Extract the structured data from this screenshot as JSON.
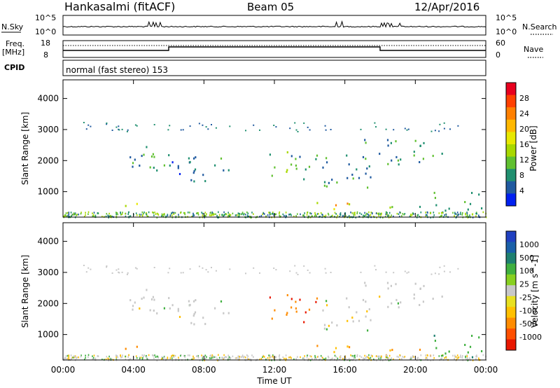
{
  "header": {
    "station": "Hankasalmi (fitACF)",
    "beam": "Beam 05",
    "date": "12/Apr/2016"
  },
  "panels": {
    "nsky_label": "N.Sky",
    "nsky_ticks": [
      "10^5",
      "10^0"
    ],
    "nsearch_label": "N.Search",
    "nsearch_ticks": [
      "10^5",
      "10^0"
    ],
    "freq_label": [
      "Freq.",
      "[MHz]"
    ],
    "freq_ticks": [
      "18",
      "8"
    ],
    "nave_label": "Nave",
    "nave_ticks": [
      "60",
      "0"
    ],
    "cpid_label": "CPID",
    "cpid_text": "normal (fast stereo) 153"
  },
  "colorbars": {
    "power": {
      "label": "Power [dB]",
      "ticks": [
        "28",
        "24",
        "20",
        "16",
        "12",
        "8",
        "4"
      ],
      "colors": [
        "#e8001e",
        "#ff4000",
        "#ff8000",
        "#ffb800",
        "#e8e800",
        "#a8d800",
        "#60c030",
        "#209070",
        "#205aa0",
        "#0020f0"
      ]
    },
    "velocity": {
      "label": "Velocity [m s^-1]",
      "ticks": [
        "1000",
        "500",
        "100",
        "25",
        "-25",
        "-100",
        "-500",
        "-1000"
      ],
      "colors": [
        "#2040c0",
        "#1a60a8",
        "#1e8070",
        "#40b040",
        "#88d020",
        "#c8c8c8",
        "#e8e020",
        "#ffc000",
        "#ff8c00",
        "#ff5000",
        "#e81800"
      ]
    }
  },
  "chart_data": [
    {
      "type": "heatmap",
      "quantity": "Power",
      "xlabel": "Time UT",
      "ylabel": "Slant Range [km]",
      "x_ticks": [
        "00:00",
        "04:00",
        "08:00",
        "12:00",
        "16:00",
        "20:00",
        "00:00"
      ],
      "y_ticks": [
        1000,
        2000,
        3000,
        4000
      ],
      "xlim_hours": [
        0,
        24
      ],
      "ylim_km": [
        180,
        4600
      ],
      "echo_regions": [
        {
          "t": [
            3.2,
            5.8
          ],
          "r": [
            1700,
            2600
          ],
          "value_db": 10
        },
        {
          "t": [
            3.0,
            4.6
          ],
          "r": [
            500,
            700
          ],
          "value_db": 22
        },
        {
          "t": [
            5.8,
            9.5
          ],
          "r": [
            1300,
            2300
          ],
          "value_db": 8
        },
        {
          "t": [
            11.5,
            14.5
          ],
          "r": [
            1400,
            2300
          ],
          "value_db": 12
        },
        {
          "t": [
            14.5,
            17.5
          ],
          "r": [
            1100,
            2200
          ],
          "value_db": 10
        },
        {
          "t": [
            14.3,
            17.0
          ],
          "r": [
            400,
            700
          ],
          "value_db": 20
        },
        {
          "t": [
            17.0,
            21.5
          ],
          "r": [
            1800,
            2700
          ],
          "value_db": 10
        },
        {
          "t": [
            18.0,
            21.0
          ],
          "r": [
            300,
            600
          ],
          "value_db": 16
        },
        {
          "t": [
            21.0,
            24.0
          ],
          "r": [
            300,
            1000
          ],
          "value_db": 14
        }
      ]
    },
    {
      "type": "heatmap",
      "quantity": "Velocity",
      "xlabel": "Time UT",
      "ylabel": "Slant Range [km]",
      "x_ticks": [
        "00:00",
        "04:00",
        "08:00",
        "12:00",
        "16:00",
        "20:00",
        "00:00"
      ],
      "y_ticks": [
        1000,
        2000,
        3000,
        4000
      ],
      "xlim_hours": [
        0,
        24
      ],
      "ylim_km": [
        180,
        4600
      ],
      "echo_regions": [
        {
          "t": [
            3.2,
            5.8
          ],
          "r": [
            1700,
            2600
          ],
          "value_ms": 0
        },
        {
          "t": [
            3.0,
            4.6
          ],
          "r": [
            500,
            700
          ],
          "value_ms": -100
        },
        {
          "t": [
            5.8,
            9.5
          ],
          "r": [
            1300,
            2300
          ],
          "value_ms": 0
        },
        {
          "t": [
            11.5,
            14.5
          ],
          "r": [
            1400,
            2300
          ],
          "value_ms": -500
        },
        {
          "t": [
            14.5,
            17.5
          ],
          "r": [
            1100,
            2200
          ],
          "value_ms": 0
        },
        {
          "t": [
            14.3,
            17.0
          ],
          "r": [
            400,
            700
          ],
          "value_ms": -100
        },
        {
          "t": [
            17.0,
            21.5
          ],
          "r": [
            1800,
            2700
          ],
          "value_ms": 0
        },
        {
          "t": [
            18.0,
            21.0
          ],
          "r": [
            300,
            600
          ],
          "value_ms": -100
        },
        {
          "t": [
            21.0,
            24.0
          ],
          "r": [
            300,
            1000
          ],
          "value_ms": 100
        }
      ]
    }
  ]
}
